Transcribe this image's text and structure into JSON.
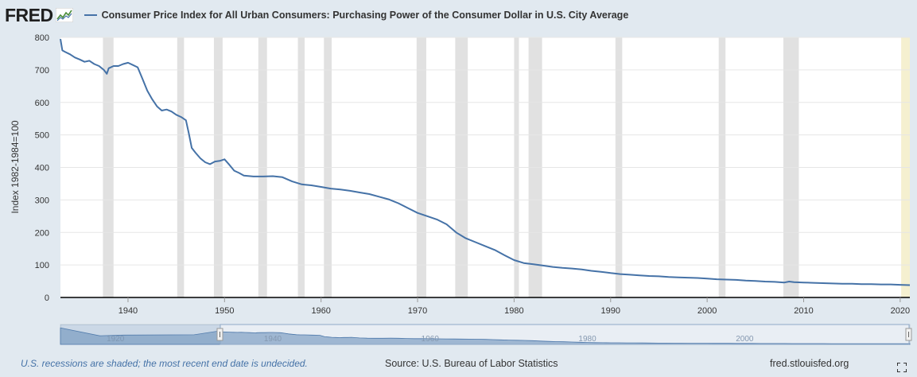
{
  "header": {
    "logo_text": "FRED",
    "logo_icon": "fred-chart-icon",
    "title": "Consumer Price Index for All Urban Consumers: Purchasing Power of the Consumer Dollar in U.S. City Average"
  },
  "footer": {
    "note": "U.S. recessions are shaded; the most recent end date is undecided.",
    "source": "Source: U.S. Bureau of Labor Statistics",
    "site": "fred.stlouisfed.org",
    "fullscreen_icon": "fullscreen-icon"
  },
  "colors": {
    "line": "#4572a7",
    "recession": "#e1e1e1",
    "undecided_recession": "#f5f0d0",
    "background": "#e1e9f0",
    "plot_bg": "#ffffff",
    "navigator_fill": "#a8bfd8"
  },
  "chart_data": {
    "type": "line",
    "title": "Consumer Price Index for All Urban Consumers: Purchasing Power of the Consumer Dollar in U.S. City Average",
    "xlabel": "",
    "ylabel": "Index 1982-1984=100",
    "xlim": [
      1933.0,
      2021.0
    ],
    "ylim": [
      0,
      800
    ],
    "x_ticks": [
      1940,
      1950,
      1960,
      1970,
      1980,
      1990,
      2000,
      2010,
      2020
    ],
    "x_tick_labels": [
      "1940",
      "1950",
      "1960",
      "1970",
      "1980",
      "1990",
      "2000",
      "2010",
      "2020"
    ],
    "y_ticks": [
      0,
      100,
      200,
      300,
      400,
      500,
      600,
      700,
      800
    ],
    "y_tick_labels": [
      "0",
      "100",
      "200",
      "300",
      "400",
      "500",
      "600",
      "700",
      "800"
    ],
    "grid": "horizontal",
    "series": [
      {
        "x": [
          1933.0,
          1933.2,
          1933.5,
          1934.0,
          1934.5,
          1935.0,
          1935.5,
          1936.0,
          1936.5,
          1937.0,
          1937.5,
          1937.8,
          1938.0,
          1938.5,
          1939.0,
          1939.5,
          1940.0,
          1940.5,
          1941.0,
          1941.5,
          1942.0,
          1942.5,
          1943.0,
          1943.5,
          1944.0,
          1944.5,
          1945.0,
          1945.5,
          1946.0,
          1946.3,
          1946.6,
          1947.0,
          1947.5,
          1948.0,
          1948.5,
          1949.0,
          1949.5,
          1950.0,
          1950.5,
          1951.0,
          1951.5,
          1952.0,
          1953.0,
          1954.0,
          1955.0,
          1956.0,
          1957.0,
          1958.0,
          1959.0,
          1960.0,
          1961.0,
          1962.0,
          1963.0,
          1964.0,
          1965.0,
          1966.0,
          1967.0,
          1968.0,
          1969.0,
          1970.0,
          1971.0,
          1972.0,
          1973.0,
          1974.0,
          1975.0,
          1976.0,
          1977.0,
          1978.0,
          1979.0,
          1980.0,
          1981.0,
          1982.0,
          1983.0,
          1984.0,
          1985.0,
          1986.0,
          1987.0,
          1988.0,
          1989.0,
          1990.0,
          1991.0,
          1992.0,
          1993.0,
          1994.0,
          1995.0,
          1996.0,
          1997.0,
          1998.0,
          1999.0,
          2000.0,
          2001.0,
          2002.0,
          2003.0,
          2004.0,
          2005.0,
          2006.0,
          2007.0,
          2008.0,
          2008.5,
          2009.0,
          2010.0,
          2011.0,
          2012.0,
          2013.0,
          2014.0,
          2015.0,
          2016.0,
          2017.0,
          2018.0,
          2019.0,
          2020.0,
          2021.0
        ],
        "values": [
          795,
          760,
          755,
          748,
          738,
          732,
          725,
          728,
          718,
          712,
          700,
          688,
          705,
          712,
          712,
          718,
          722,
          715,
          708,
          672,
          636,
          610,
          588,
          575,
          578,
          572,
          562,
          555,
          545,
          505,
          460,
          445,
          428,
          416,
          410,
          418,
          420,
          425,
          408,
          390,
          383,
          375,
          372,
          372,
          373,
          370,
          357,
          348,
          345,
          340,
          335,
          332,
          328,
          323,
          318,
          310,
          302,
          290,
          275,
          260,
          250,
          240,
          225,
          200,
          182,
          170,
          158,
          146,
          130,
          115,
          106,
          102,
          98,
          94,
          91,
          89,
          86,
          82,
          79,
          75,
          72,
          70,
          68,
          66,
          65,
          63,
          62,
          61,
          60,
          58,
          56,
          55,
          54,
          52,
          51,
          49,
          48,
          46,
          49,
          47,
          46,
          45,
          44,
          43,
          42,
          42,
          41,
          41,
          40,
          40,
          39,
          38
        ]
      }
    ],
    "recessions": [
      [
        1937.4,
        1938.5
      ],
      [
        1945.1,
        1945.8
      ],
      [
        1948.9,
        1949.8
      ],
      [
        1953.5,
        1954.4
      ],
      [
        1957.6,
        1958.3
      ],
      [
        1960.3,
        1961.1
      ],
      [
        1969.9,
        1970.9
      ],
      [
        1973.9,
        1975.2
      ],
      [
        1980.0,
        1980.5
      ],
      [
        1981.5,
        1982.9
      ],
      [
        1990.5,
        1991.2
      ],
      [
        2001.2,
        2001.9
      ],
      [
        2007.9,
        2009.5
      ],
      [
        2020.1,
        2021.0
      ]
    ],
    "navigator": {
      "x_labels": [
        "1920",
        "1940",
        "1960",
        "1980",
        "2000"
      ]
    }
  }
}
